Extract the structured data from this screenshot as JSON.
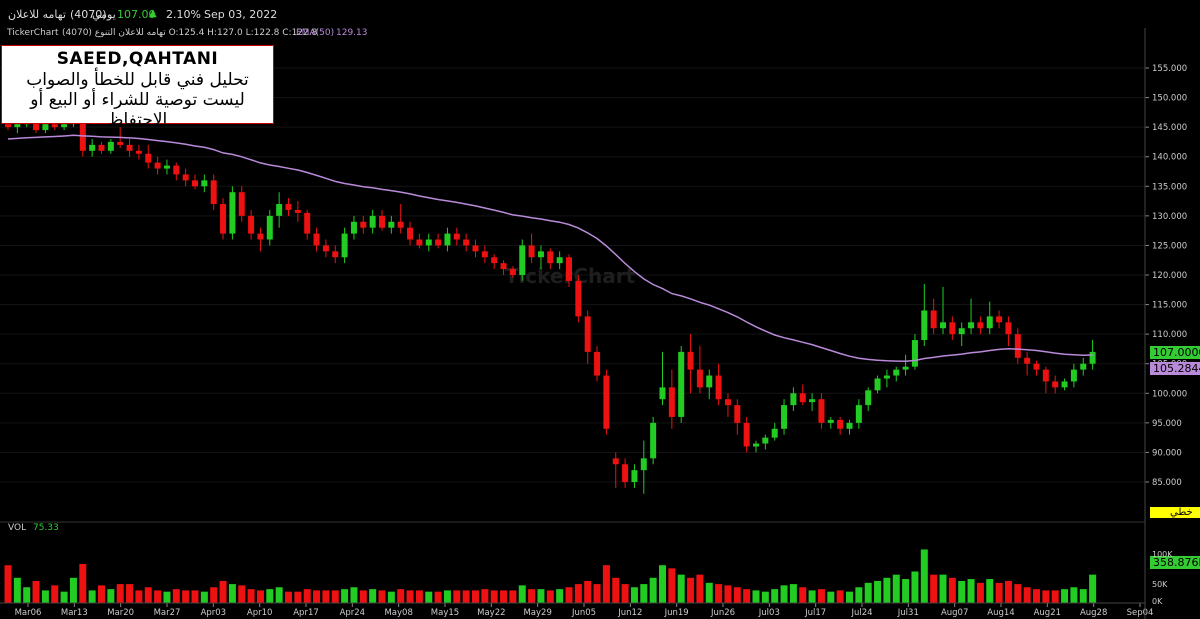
{
  "header": {
    "symbol_name": "تهامه للاعلان",
    "symbol_code": "(4070)",
    "period": "يومي",
    "last_price": "107.00",
    "change_pct": "2.10%",
    "date": "Sep 03, 2022",
    "brand": "TickerChart",
    "ohlc": "تهامه للاعلان التنوع (4070) O:125.4 H:127.0 L:122.8 C:122.8",
    "ema_label": "EMA(50)",
    "ema_value": "129.13",
    "vol_label": "VOL",
    "vol_value": "75.33",
    "watermark": "TickerChart",
    "colors": {
      "up": "#22cc22",
      "down": "#ee1111",
      "ema": "#b98ad9",
      "last_green": "#33cc33"
    }
  },
  "annotation": {
    "line1": "SAEED,QAHTANI",
    "line2": "تحليل فني قابل للخطأ والصواب",
    "line3": "ليست توصية للشراء أو البيع أو الاحتفاظ"
  },
  "right_labels": {
    "last_price": "107.0000",
    "ema_price": "105.2844",
    "draw_label": "خطي",
    "volume": "358.876K",
    "vol_top": "100K",
    "vol_mid": "50K",
    "vol_zero": "0K"
  },
  "chart_data": {
    "type": "candlestick",
    "price_axis": {
      "min": 80,
      "max": 160,
      "ticks": [
        85,
        90,
        95,
        100,
        105,
        110,
        115,
        120,
        125,
        130,
        135,
        140,
        145,
        150,
        155
      ]
    },
    "x_labels": [
      "Mar06",
      "Mar13",
      "Mar20",
      "Mar27",
      "Apr03",
      "Apr10",
      "Apr17",
      "Apr24",
      "May08",
      "May15",
      "May22",
      "May29",
      "Jun05",
      "Jun12",
      "Jun19",
      "Jun26",
      "Jul03",
      "Jul17",
      "Jul24",
      "Jul31",
      "Aug07",
      "Aug14",
      "Aug21",
      "Aug28",
      "Sep04"
    ],
    "candles": [
      [
        145.5,
        146,
        144.5,
        145,
        60
      ],
      [
        145,
        146.5,
        144,
        145.5,
        40
      ],
      [
        145.5,
        147,
        145,
        146,
        25
      ],
      [
        146,
        146.5,
        144,
        144.5,
        35
      ],
      [
        144.5,
        146,
        144,
        145.5,
        20
      ],
      [
        145.5,
        146,
        144.5,
        145,
        28
      ],
      [
        145,
        146,
        144.5,
        145.5,
        18
      ],
      [
        145.5,
        147.5,
        145,
        146.5,
        40
      ],
      [
        146.5,
        148,
        140,
        141,
        62
      ],
      [
        141,
        143,
        140,
        142,
        20
      ],
      [
        142,
        142.5,
        140.5,
        141,
        28
      ],
      [
        141,
        143,
        140.5,
        142.5,
        22
      ],
      [
        142.5,
        145,
        141.5,
        142,
        30
      ],
      [
        142,
        143,
        140,
        141,
        30
      ],
      [
        141,
        142,
        139.5,
        140.5,
        20
      ],
      [
        140.5,
        142,
        138,
        139,
        25
      ],
      [
        139,
        140,
        137,
        138,
        20
      ],
      [
        138,
        139.5,
        137,
        138.5,
        18
      ],
      [
        138.5,
        139,
        136,
        137,
        22
      ],
      [
        137,
        138,
        135,
        136,
        20
      ],
      [
        136,
        137,
        134.5,
        135,
        20
      ],
      [
        135,
        137,
        134,
        136,
        18
      ],
      [
        136,
        137,
        131,
        132,
        25
      ],
      [
        132,
        133,
        126,
        127,
        35
      ],
      [
        127,
        135,
        126,
        134,
        30
      ],
      [
        134,
        135,
        129,
        130,
        28
      ],
      [
        130,
        131,
        126,
        127,
        22
      ],
      [
        127,
        128,
        124,
        126,
        20
      ],
      [
        126,
        131,
        125,
        130,
        22
      ],
      [
        130,
        134,
        128,
        132,
        25
      ],
      [
        132,
        133,
        130,
        131,
        18
      ],
      [
        131,
        132.5,
        129,
        130.5,
        18
      ],
      [
        130.5,
        131,
        126,
        127,
        22
      ],
      [
        127,
        128,
        124,
        125,
        20
      ],
      [
        125,
        126,
        123,
        124,
        20
      ],
      [
        124,
        125,
        122,
        123,
        20
      ],
      [
        123,
        128,
        122,
        127,
        22
      ],
      [
        127,
        130,
        126,
        129,
        25
      ],
      [
        129,
        130,
        127,
        128,
        20
      ],
      [
        128,
        131,
        127,
        130,
        22
      ],
      [
        130,
        131,
        127.5,
        128,
        20
      ],
      [
        128,
        130,
        127,
        129,
        18
      ],
      [
        129,
        132,
        127,
        128,
        22
      ],
      [
        128,
        129,
        125,
        126,
        20
      ],
      [
        126,
        127,
        124.5,
        125,
        20
      ],
      [
        125,
        127,
        124,
        126,
        18
      ],
      [
        126,
        127,
        124.5,
        125,
        18
      ],
      [
        125,
        128,
        124,
        127,
        20
      ],
      [
        127,
        128,
        125,
        126,
        20
      ],
      [
        126,
        127,
        124,
        125,
        20
      ],
      [
        125,
        126,
        123,
        124,
        20
      ],
      [
        124,
        125,
        122,
        123,
        22
      ],
      [
        123,
        123.5,
        121,
        122,
        20
      ],
      [
        122,
        122.5,
        120,
        121,
        20
      ],
      [
        121,
        121.5,
        119.5,
        120,
        20
      ],
      [
        120,
        126,
        119,
        125,
        28
      ],
      [
        125,
        127,
        122,
        123,
        22
      ],
      [
        123,
        125,
        121,
        124,
        22
      ],
      [
        124,
        124.5,
        121,
        122,
        20
      ],
      [
        122,
        124,
        121,
        123,
        22
      ],
      [
        123,
        123.5,
        118,
        119,
        25
      ],
      [
        119,
        120,
        112,
        113,
        30
      ],
      [
        113,
        114,
        105,
        107,
        35
      ],
      [
        107,
        108,
        102,
        103,
        30
      ],
      [
        103,
        104,
        93,
        94,
        60
      ],
      [
        89,
        90,
        84,
        88,
        40
      ],
      [
        88,
        89,
        84,
        85,
        30
      ],
      [
        85,
        88,
        84,
        87,
        25
      ],
      [
        87,
        92,
        83,
        89,
        30
      ],
      [
        89,
        96,
        88,
        95,
        40
      ],
      [
        99,
        107,
        98,
        101,
        60
      ],
      [
        101,
        104,
        94,
        96,
        55
      ],
      [
        96,
        108,
        95,
        107,
        45
      ],
      [
        107,
        110,
        100,
        104,
        40
      ],
      [
        104,
        108,
        100,
        101,
        45
      ],
      [
        101,
        104,
        99,
        103,
        32
      ],
      [
        103,
        105,
        98,
        99,
        30
      ],
      [
        99,
        100,
        96,
        98,
        28
      ],
      [
        98,
        99,
        93,
        95,
        25
      ],
      [
        95,
        96,
        90,
        91,
        22
      ],
      [
        91,
        92,
        90,
        91.5,
        20
      ],
      [
        91.5,
        93,
        90.5,
        92.5,
        18
      ],
      [
        92.5,
        95,
        92,
        94,
        22
      ],
      [
        94,
        99,
        93,
        98,
        28
      ],
      [
        98,
        101,
        97,
        100,
        30
      ],
      [
        100,
        101.5,
        98,
        98.5,
        25
      ],
      [
        98.5,
        100,
        97,
        99,
        20
      ],
      [
        99,
        100,
        94,
        95,
        22
      ],
      [
        95,
        96,
        94,
        95.5,
        18
      ],
      [
        95.5,
        96,
        93,
        94,
        20
      ],
      [
        94,
        95.5,
        93,
        95,
        18
      ],
      [
        95,
        99,
        94,
        98,
        25
      ],
      [
        98,
        101,
        97,
        100.5,
        32
      ],
      [
        100.5,
        103,
        100,
        102.5,
        35
      ],
      [
        102.5,
        104,
        101,
        103,
        40
      ],
      [
        103,
        104.5,
        102,
        104,
        45
      ],
      [
        104,
        106.5,
        103,
        104.5,
        38
      ],
      [
        104.5,
        110,
        104,
        109,
        50
      ],
      [
        109,
        118.5,
        108,
        114,
        85
      ],
      [
        114,
        116,
        110,
        111,
        45
      ],
      [
        111,
        118,
        110,
        112,
        45
      ],
      [
        112,
        113,
        109,
        110,
        40
      ],
      [
        110,
        112,
        108,
        111,
        35
      ],
      [
        111,
        116,
        110,
        112,
        38
      ],
      [
        112,
        113,
        110,
        111,
        32
      ],
      [
        111,
        115.5,
        110,
        113,
        38
      ],
      [
        113,
        114,
        111,
        112,
        32
      ],
      [
        112,
        113,
        108,
        110,
        35
      ],
      [
        110,
        111,
        105,
        106,
        30
      ],
      [
        106,
        107,
        103,
        105,
        25
      ],
      [
        105,
        105.5,
        103,
        104,
        22
      ],
      [
        104,
        104.5,
        100,
        102,
        20
      ],
      [
        102,
        103,
        100,
        101,
        20
      ],
      [
        101,
        102.5,
        100.5,
        102,
        22
      ],
      [
        102,
        105,
        101,
        104,
        25
      ],
      [
        104,
        106,
        103,
        105,
        22
      ],
      [
        105,
        109,
        104,
        107,
        45
      ]
    ]
  }
}
